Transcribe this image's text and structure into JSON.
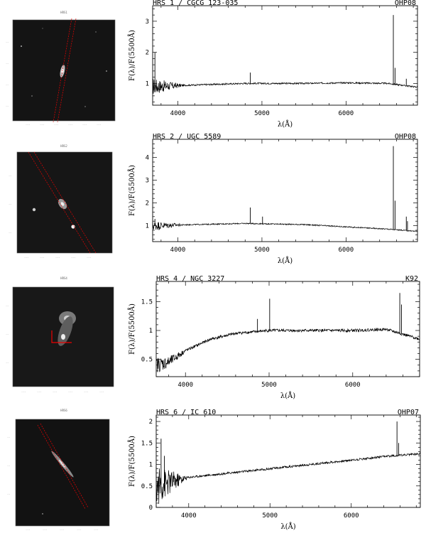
{
  "chart_data": [
    {
      "type": "line",
      "id": "p1",
      "thumb_title": "HRS1",
      "title_left": "HRS 1 / CGCG 123-035",
      "title_right": "OHP08",
      "xlabel": "λ(Å)",
      "ylabel": "F(λ)/F(5500Å)",
      "xlim": [
        3700,
        6850
      ],
      "ylim": [
        0.3,
        3.5
      ],
      "xticks": [
        4000,
        5000,
        6000
      ],
      "yticks": [
        1,
        2,
        3
      ],
      "continuum": {
        "x": [
          3700,
          4200,
          4800,
          5500,
          6000,
          6500,
          6850
        ],
        "y": [
          0.9,
          0.95,
          1.0,
          1.0,
          1.02,
          1.0,
          0.88
        ]
      },
      "emission_lines": [
        {
          "x": 4861,
          "y": 1.35
        },
        {
          "x": 6563,
          "y": 3.2
        },
        {
          "x": 6583,
          "y": 1.5
        },
        {
          "x": 6717,
          "y": 1.15
        }
      ],
      "spikes_blue": [
        {
          "x": 3727,
          "y": 2.0
        }
      ],
      "noise_edge": 0.25
    },
    {
      "type": "line",
      "id": "p2",
      "thumb_title": "HRS2",
      "title_left": "HRS 2 / UGC 5589",
      "title_right": "OHP08",
      "xlabel": "λ(Å)",
      "ylabel": "F(λ)/F(5500Å)",
      "xlim": [
        3700,
        6850
      ],
      "ylim": [
        0.3,
        4.8
      ],
      "xticks": [
        4000,
        5000,
        6000
      ],
      "yticks": [
        1,
        2,
        3,
        4
      ],
      "continuum": {
        "x": [
          3700,
          4200,
          4800,
          5500,
          6000,
          6500,
          6850
        ],
        "y": [
          1.0,
          1.05,
          1.1,
          1.05,
          0.95,
          0.85,
          0.75
        ]
      },
      "emission_lines": [
        {
          "x": 4861,
          "y": 1.8
        },
        {
          "x": 5007,
          "y": 1.4
        },
        {
          "x": 6563,
          "y": 4.5
        },
        {
          "x": 6583,
          "y": 2.1
        },
        {
          "x": 6717,
          "y": 1.4
        },
        {
          "x": 6731,
          "y": 1.2
        }
      ],
      "spikes_blue": [
        {
          "x": 3727,
          "y": 1.3
        }
      ],
      "noise_edge": 0.2
    },
    {
      "type": "line",
      "id": "p3",
      "thumb_title": "HRS4",
      "title_left": "HRS 4 / NGC 3227",
      "title_right": "K92",
      "xlabel": "λ(Å)",
      "ylabel": "F(λ)/F(5500Å)",
      "xlim": [
        3650,
        6800
      ],
      "ylim": [
        0.2,
        1.85
      ],
      "xticks": [
        4000,
        5000,
        6000
      ],
      "yticks": [
        0.5,
        1,
        1.5
      ],
      "continuum": {
        "x": [
          3650,
          3800,
          4000,
          4300,
          4600,
          5000,
          5500,
          6000,
          6400,
          6800
        ],
        "y": [
          0.4,
          0.45,
          0.65,
          0.85,
          0.95,
          1.0,
          1.0,
          1.0,
          1.02,
          0.85
        ]
      },
      "emission_lines": [
        {
          "x": 4861,
          "y": 1.2
        },
        {
          "x": 5007,
          "y": 1.55
        },
        {
          "x": 6563,
          "y": 1.65
        },
        {
          "x": 6583,
          "y": 1.45
        }
      ],
      "spikes_blue": [],
      "noise_edge": 0.12
    },
    {
      "type": "line",
      "id": "p4",
      "thumb_title": "HRS6",
      "title_left": "HRS 6 / IC 610",
      "title_right": "OHP07",
      "xlabel": "λ(Å)",
      "ylabel": "F(λ)/F(5500Å)",
      "xlim": [
        3600,
        6850
      ],
      "ylim": [
        0.0,
        2.15
      ],
      "xticks": [
        4000,
        5000,
        6000
      ],
      "yticks": [
        0,
        0.5,
        1,
        1.5,
        2
      ],
      "continuum": {
        "x": [
          3600,
          3800,
          4000,
          4500,
          5000,
          5500,
          6000,
          6500,
          6850
        ],
        "y": [
          0.5,
          0.6,
          0.7,
          0.8,
          0.9,
          1.0,
          1.1,
          1.2,
          1.25
        ]
      },
      "emission_lines": [
        {
          "x": 6563,
          "y": 2.0
        },
        {
          "x": 6583,
          "y": 1.5
        }
      ],
      "spikes_blue": [
        {
          "x": 3660,
          "y": 1.6
        },
        {
          "x": 3700,
          "y": 1.2
        }
      ],
      "noise_edge": 0.45
    }
  ]
}
